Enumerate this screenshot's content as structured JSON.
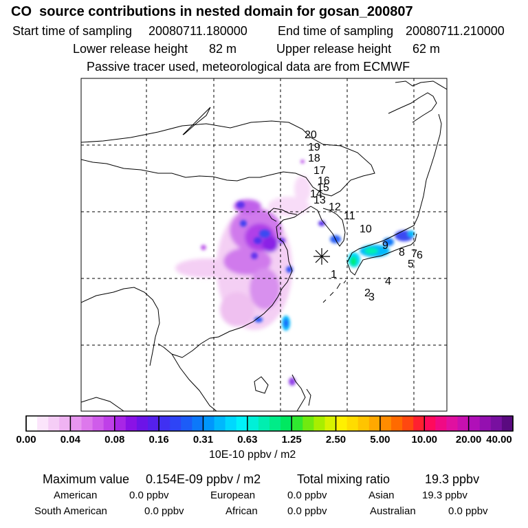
{
  "header": {
    "title": "CO  source contributions in nested domain for gosan_200807",
    "start_label": "Start time of sampling",
    "start_value": "20080711.180000",
    "end_label": "End time of sampling",
    "end_value": "20080711.210000",
    "lower_label": "Lower release height",
    "lower_value": "82 m",
    "upper_label": "Upper release height",
    "upper_value": "62 m",
    "note": "Passive tracer used, meteorological data are from ECMWF"
  },
  "trajectory_points": [
    "1",
    "2",
    "3",
    "4",
    "5",
    "6",
    "7",
    "8",
    "9",
    "10",
    "11",
    "12",
    "13",
    "14",
    "15",
    "16",
    "17",
    "18",
    "19",
    "20"
  ],
  "colorbar": {
    "unit": "10E-10 ppbv / m2",
    "labels": [
      "0.00",
      "0.04",
      "0.08",
      "0.16",
      "0.31",
      "0.63",
      "1.25",
      "2.50",
      "5.00",
      "10.00",
      "20.00",
      "40.00"
    ],
    "colors": [
      "#ffffff",
      "#fbe5fb",
      "#f5cdf6",
      "#efb3f2",
      "#e796ef",
      "#dd78ec",
      "#cf5cea",
      "#bf40e8",
      "#a826e6",
      "#8a12e6",
      "#6c14e8",
      "#5520ec",
      "#4030f2",
      "#2e44f6",
      "#1c5cf8",
      "#0c78fa",
      "#0096fc",
      "#00b8fd",
      "#00d8fe",
      "#00f2fa",
      "#00f0d8",
      "#00eeb0",
      "#00ec88",
      "#00e860",
      "#30e830",
      "#70ea10",
      "#a8ee00",
      "#d8f200",
      "#fff000",
      "#ffdc00",
      "#ffc400",
      "#ffa800",
      "#ff8c00",
      "#ff6a00",
      "#ff4810",
      "#ff2030",
      "#ff0a5c",
      "#f00a84",
      "#e010a0",
      "#c810b0",
      "#b010b8",
      "#9410b0",
      "#7810a0",
      "#5a0a80"
    ]
  },
  "stats": {
    "max_label": "Maximum value",
    "max_value": "0.154E-09 ppbv / m2",
    "total_label": "Total mixing ratio",
    "total_value": "19.3 ppbv",
    "american_label": "American",
    "american_value": "0.0 ppbv",
    "european_label": "European",
    "european_value": "0.0 ppbv",
    "asian_label": "Asian",
    "asian_value": "19.3 ppbv",
    "south_american_label": "South American",
    "south_american_value": "0.0 ppbv",
    "african_label": "African",
    "african_value": "0.0 ppbv",
    "australian_label": "Australian",
    "australian_value": "0.0 ppbv"
  }
}
